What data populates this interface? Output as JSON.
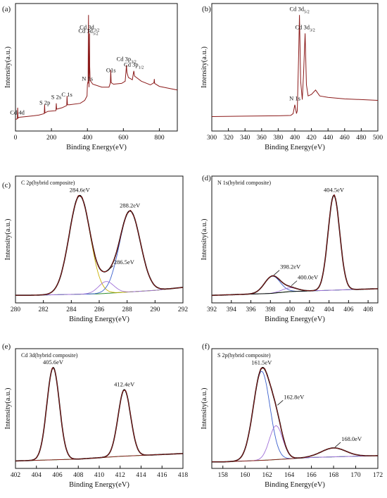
{
  "colors": {
    "frame": "#111111",
    "data": "#8b1a1a",
    "fit_envelope": "#000000",
    "background": "#2e8b2e",
    "blue_component": "#3a5fcd",
    "purple_component": "#a070d8",
    "yellow_component": "#c8b000"
  },
  "chart_data": [
    {
      "panel": "(a)",
      "type": "line",
      "title": "",
      "xlabel": "Binding Energy(eV)",
      "ylabel": "Intensity(a.u.)",
      "xlim": [
        0,
        900
      ],
      "xticks": [
        "0",
        "200",
        "400",
        "600",
        "800"
      ],
      "series": [
        {
          "role": "data",
          "x": [
            0,
            10,
            12,
            14,
            20,
            60,
            100,
            130,
            160,
            162,
            164,
            180,
            225,
            227,
            229,
            260,
            285,
            287,
            289,
            300,
            360,
            385,
            398,
            400,
            402,
            404,
            405,
            406,
            407,
            409,
            411,
            412,
            413,
            415,
            418,
            430,
            480,
            520,
            528,
            530,
            532,
            545,
            590,
            610,
            615,
            617,
            620,
            628,
            650,
            655,
            658,
            662,
            700,
            750,
            770,
            772,
            774,
            800,
            860,
            900
          ],
          "y": [
            8,
            9,
            24,
            10,
            11,
            12,
            13,
            14,
            16,
            28,
            17,
            19,
            20,
            30,
            22,
            24,
            27,
            40,
            28,
            28,
            30,
            34,
            40,
            55,
            58,
            57,
            120,
            150,
            95,
            52,
            90,
            125,
            80,
            62,
            60,
            56,
            52,
            52,
            58,
            75,
            58,
            56,
            57,
            60,
            75,
            82,
            72,
            65,
            62,
            70,
            74,
            67,
            60,
            55,
            58,
            63,
            57,
            53,
            50,
            48
          ]
        }
      ],
      "annotations": [
        {
          "text": "Cd 4d",
          "x": 10
        },
        {
          "text": "S 2p",
          "x": 163
        },
        {
          "text": "S 2s",
          "x": 227
        },
        {
          "text": "C 1s",
          "x": 286
        },
        {
          "text": "N 1s",
          "x": 400
        },
        {
          "text": "Cd 3d",
          "sub": "5/2",
          "x": 405
        },
        {
          "text": "Cd 3d",
          "sub": "3/2",
          "x": 412
        },
        {
          "text": "O1s",
          "x": 531
        },
        {
          "text": "Cd 3p",
          "sub": "3/2",
          "x": 617
        },
        {
          "text": "Cd 3p",
          "sub": "1/2",
          "x": 658
        }
      ]
    },
    {
      "panel": "(b)",
      "type": "line",
      "title": "",
      "xlabel": "Binding Energy(eV)",
      "ylabel": "Intensity(a.u.)",
      "xlim": [
        300,
        500
      ],
      "xticks": [
        "300",
        "320",
        "340",
        "360",
        "380",
        "400",
        "420",
        "440",
        "460",
        "480",
        "500"
      ],
      "series": [
        {
          "role": "data",
          "x": [
            300,
            340,
            380,
            395,
            398,
            400,
            402,
            403,
            404.5,
            405.6,
            407,
            409,
            410.5,
            412.4,
            414,
            416,
            420,
            425,
            430,
            440,
            460,
            480,
            500
          ],
          "y": [
            12,
            12.5,
            13,
            13.5,
            16,
            28,
            16,
            20,
            90,
            150,
            60,
            35,
            70,
            125,
            55,
            40,
            42,
            48,
            40,
            38,
            36,
            35,
            34
          ]
        }
      ],
      "annotations": [
        {
          "text": "N 1s",
          "x": 400
        },
        {
          "text": "Cd 3d",
          "sub": "5/2",
          "x": 405.6
        },
        {
          "text": "Cd 3d",
          "sub": "3/2",
          "x": 412.4
        }
      ]
    },
    {
      "panel": "(c)",
      "type": "line",
      "title": "C 2p(hybrid composite)",
      "xlabel": "Binding Energy(eV)",
      "ylabel": "Intensity(a.u.)",
      "xlim": [
        280,
        292
      ],
      "xticks": [
        "280",
        "282",
        "284",
        "286",
        "288",
        "290",
        "292"
      ],
      "peaks": [
        {
          "center": 284.6,
          "label": "284.6eV",
          "height": 100,
          "width": 0.75
        },
        {
          "center": 288.2,
          "label": "288.2eV",
          "height": 82,
          "width": 0.75
        },
        {
          "center": 286.5,
          "label": "286.5eV",
          "height": 12,
          "width": 0.55
        }
      ],
      "background": {
        "x": [
          281,
          286,
          290,
          292
        ],
        "y": [
          2,
          3.5,
          7,
          10
        ]
      }
    },
    {
      "panel": "(d)",
      "type": "line",
      "title": "N 1s(hybrid composite)",
      "xlabel": "Binding Energy(eV)",
      "ylabel": "Intensity(a.u.)",
      "xlim": [
        392,
        409
      ],
      "xticks": [
        "392",
        "394",
        "396",
        "398",
        "400",
        "402",
        "404",
        "406",
        "408"
      ],
      "peaks": [
        {
          "center": 398.2,
          "label": "398.2eV",
          "height": 18,
          "width": 0.8
        },
        {
          "center": 400.0,
          "label": "400.0eV",
          "height": 4,
          "width": 0.8
        },
        {
          "center": 404.5,
          "label": "404.5eV",
          "height": 100,
          "width": 0.6
        }
      ],
      "background": {
        "x": [
          392,
          398,
          400,
          409
        ],
        "y": [
          2,
          4,
          6,
          9
        ]
      }
    },
    {
      "panel": "(e)",
      "type": "line",
      "title": "Cd 3d(hybrid composite)",
      "xlabel": "Binding Energy(eV)",
      "ylabel": "Intensity(a.u.)",
      "xlim": [
        402,
        418
      ],
      "xticks": [
        "402",
        "404",
        "406",
        "408",
        "410",
        "412",
        "414",
        "416",
        "418"
      ],
      "peaks": [
        {
          "center": 405.6,
          "label": "405.6eV",
          "height": 100,
          "width": 0.6
        },
        {
          "center": 412.4,
          "label": "412.4eV",
          "height": 72,
          "width": 0.6
        }
      ],
      "background": {
        "x": [
          402,
          408,
          412,
          418
        ],
        "y": [
          2,
          4,
          7,
          10
        ]
      }
    },
    {
      "panel": "(f)",
      "type": "line",
      "title": "S 2p(hybrid composite)",
      "xlabel": "Binding Energy(eV)",
      "ylabel": "Intensity(a.u.)",
      "xlim": [
        157,
        172
      ],
      "xticks": [
        "158",
        "160",
        "162",
        "164",
        "166",
        "168",
        "170",
        "172"
      ],
      "peaks": [
        {
          "center": 161.5,
          "label": "161.5eV",
          "height": 100,
          "width": 0.75
        },
        {
          "center": 162.8,
          "label": "162.8eV",
          "height": 38,
          "width": 0.6
        },
        {
          "center": 168.0,
          "label": "168.0eV",
          "height": 10,
          "width": 1.1
        }
      ],
      "background": {
        "x": [
          158,
          162,
          166,
          172
        ],
        "y": [
          1,
          3,
          6,
          8
        ]
      }
    }
  ]
}
